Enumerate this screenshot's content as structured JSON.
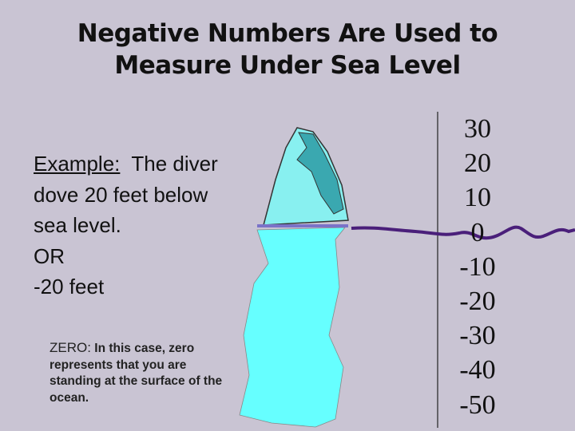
{
  "title": {
    "line1": "Negative Numbers Are Used to",
    "line2": "Measure Under Sea Level"
  },
  "example": {
    "label": "Example:",
    "text": "The diver dove 20 feet below sea level.",
    "or": "OR",
    "answer": "-20 feet"
  },
  "zero_note": {
    "label": "ZERO:",
    "text": "In this case, zero represents that you are standing at the surface of the ocean."
  },
  "scale": [
    30,
    20,
    10,
    0,
    -10,
    -20,
    -30,
    -40,
    -50
  ]
}
